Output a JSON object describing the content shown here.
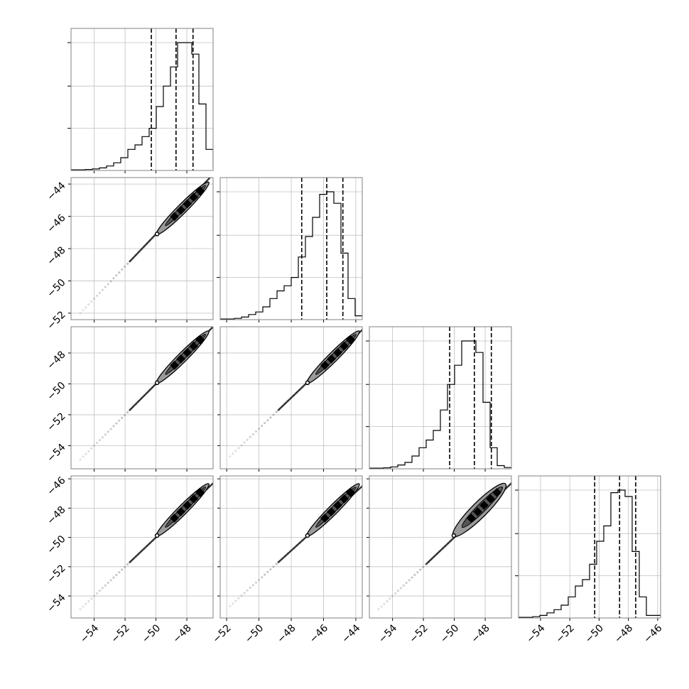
{
  "colors": {
    "background": "#ffffff",
    "ink": "#000000",
    "grid": "#c0c0c0",
    "frame": "#808080",
    "contour_fill_inner": "#000000",
    "contour_fill_outer": "#9a9a9a",
    "scatter": "#808080"
  },
  "chart_data": {
    "type": "corner",
    "parameter_count": 4,
    "grid": true,
    "quantile_lines": "dashed",
    "parameters": [
      {
        "range": [
          -55.5,
          -46.3
        ],
        "ticks": [
          -54,
          -52,
          -50,
          -48
        ],
        "tick_labels": [
          "−54",
          "−52",
          "−50",
          "−48"
        ],
        "quantiles": [
          -50.3,
          -48.7,
          -47.6
        ]
      },
      {
        "range": [
          -52.4,
          -43.6
        ],
        "ticks": [
          -52,
          -50,
          -48,
          -46,
          -44
        ],
        "tick_labels": [
          "−52",
          "−50",
          "−48",
          "−46",
          "−44"
        ],
        "quantiles": [
          -47.35,
          -45.8,
          -44.8
        ]
      },
      {
        "range": [
          -55.5,
          -46.3
        ],
        "ticks": [
          -54,
          -52,
          -50,
          -48
        ],
        "tick_labels": [
          "−54",
          "−52",
          "−50",
          "−48"
        ],
        "quantiles": [
          -50.3,
          -48.7,
          -47.6
        ]
      },
      {
        "range": [
          -55.5,
          -45.8
        ],
        "ticks": [
          -54,
          -52,
          -50,
          -48,
          -46
        ],
        "tick_labels": [
          "−54",
          "−52",
          "−50",
          "−48",
          "−46"
        ],
        "quantiles": [
          -50.3,
          -48.6,
          -47.5
        ]
      }
    ],
    "histograms": [
      {
        "bin_start": -55.5,
        "bin_width": 0.46,
        "counts": [
          0.005,
          0.005,
          0.008,
          0.012,
          0.02,
          0.035,
          0.06,
          0.1,
          0.165,
          0.2,
          0.265,
          0.33,
          0.5,
          0.66,
          0.81,
          1.0,
          1.0,
          0.91,
          0.52,
          0.165,
          0.02
        ]
      },
      {
        "bin_start": -52.4,
        "bin_width": 0.44,
        "counts": [
          0.005,
          0.005,
          0.01,
          0.02,
          0.04,
          0.06,
          0.1,
          0.165,
          0.225,
          0.265,
          0.33,
          0.49,
          0.65,
          0.8,
          0.98,
          1.0,
          0.91,
          0.52,
          0.165,
          0.03
        ]
      },
      {
        "bin_start": -55.5,
        "bin_width": 0.46,
        "counts": [
          0.005,
          0.005,
          0.008,
          0.015,
          0.03,
          0.05,
          0.1,
          0.165,
          0.225,
          0.3,
          0.46,
          0.66,
          0.81,
          1.0,
          1.0,
          0.91,
          0.52,
          0.165,
          0.025,
          0.01
        ]
      },
      {
        "bin_start": -55.5,
        "bin_width": 0.485,
        "counts": [
          0.005,
          0.005,
          0.01,
          0.02,
          0.04,
          0.065,
          0.1,
          0.165,
          0.25,
          0.3,
          0.42,
          0.6,
          0.72,
          0.98,
          1.0,
          0.95,
          0.52,
          0.165,
          0.02,
          0.02
        ]
      }
    ],
    "pairs": [
      {
        "row": 1,
        "col": 0,
        "line": {
          "intercept": 2.9,
          "slope": 1.0
        },
        "centre": [
          -49.1,
          -46.3
        ],
        "contour_half_widths": [
          0.55,
          0.3
        ]
      },
      {
        "row": 2,
        "col": 0,
        "line": {
          "intercept": 0.0,
          "slope": 1.0
        },
        "centre": [
          -49.1,
          -49.1
        ],
        "contour_half_widths": [
          0.55,
          0.3
        ]
      },
      {
        "row": 2,
        "col": 1,
        "line": {
          "intercept": -2.9,
          "slope": 1.0
        },
        "centre": [
          -46.2,
          -49.1
        ],
        "contour_half_widths": [
          0.55,
          0.3
        ]
      },
      {
        "row": 3,
        "col": 0,
        "line": {
          "intercept": 0.0,
          "slope": 1.0
        },
        "centre": [
          -49.1,
          -49.0
        ],
        "contour_half_widths": [
          0.55,
          0.3
        ]
      },
      {
        "row": 3,
        "col": 1,
        "line": {
          "intercept": -2.9,
          "slope": 1.0
        },
        "centre": [
          -46.2,
          -49.0
        ],
        "contour_half_widths": [
          0.55,
          0.3
        ]
      },
      {
        "row": 3,
        "col": 2,
        "line": {
          "intercept": 0.0,
          "slope": 1.0
        },
        "centre": [
          -49.2,
          -49.0
        ],
        "contour_half_widths": [
          0.9,
          0.5
        ]
      }
    ]
  }
}
